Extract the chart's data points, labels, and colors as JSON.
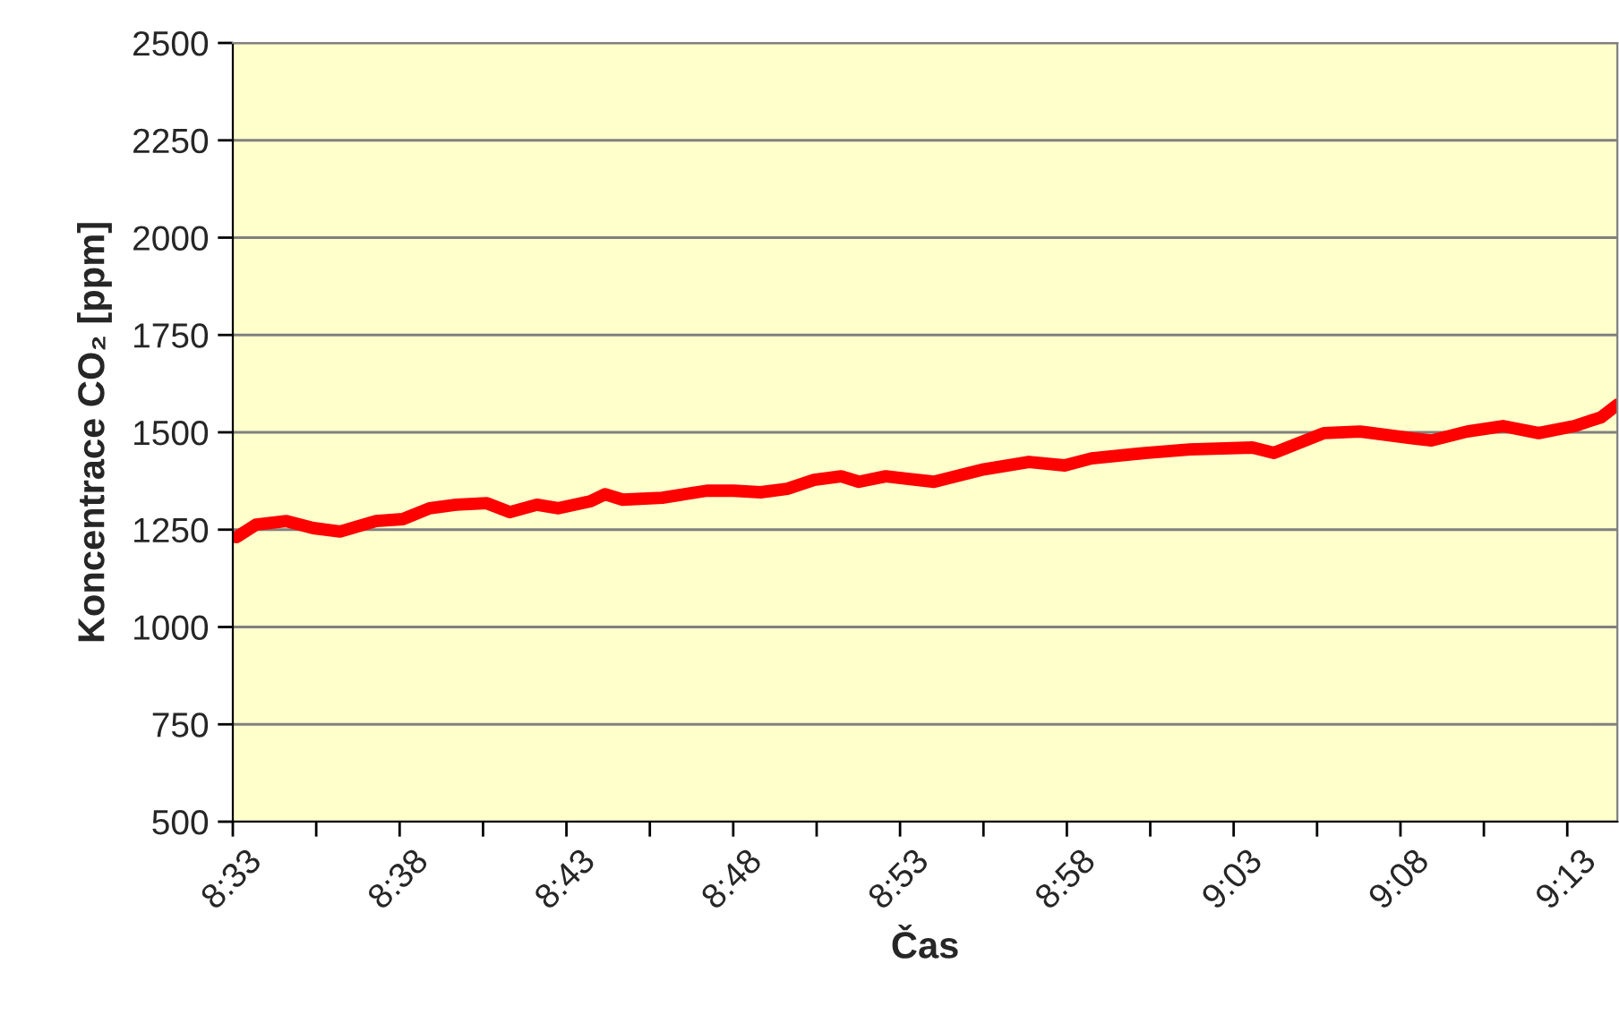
{
  "chart_data": {
    "type": "line",
    "xlabel": "Čas",
    "ylabel": "Koncentrace CO₂ [ppm]",
    "series": [
      {
        "color": "#ff0000",
        "x": [
          8.5518,
          8.5616,
          8.5768,
          8.5902,
          8.6036,
          8.6215,
          8.6349,
          8.6483,
          8.6617,
          8.6769,
          8.6885,
          8.7019,
          8.7127,
          8.7287,
          8.7359,
          8.7448,
          8.7645,
          8.7868,
          8.8002,
          8.8136,
          8.827,
          8.8404,
          8.8539,
          8.8628,
          8.8762,
          8.9003,
          8.9253,
          8.9477,
          8.9656,
          8.979,
          9.0058,
          9.0281,
          9.0594,
          9.0701,
          9.0951,
          9.113,
          9.1398,
          9.1488,
          9.1666,
          9.1845,
          9.2024,
          9.2202,
          9.2337,
          9.2417
        ],
        "values": [
          1231,
          1263,
          1272,
          1254,
          1245,
          1272,
          1277,
          1305,
          1314,
          1318,
          1295,
          1314,
          1305,
          1323,
          1341,
          1327,
          1332,
          1350,
          1350,
          1346,
          1355,
          1378,
          1387,
          1373,
          1387,
          1373,
          1405,
          1424,
          1415,
          1433,
          1447,
          1456,
          1461,
          1447,
          1498,
          1502,
          1484,
          1479,
          1502,
          1516,
          1498,
          1516,
          1539,
          1571
        ]
      }
    ],
    "xlim": [
      8.55,
      9.2417
    ],
    "xticks": [
      {
        "value": 8.55,
        "label": "8:33"
      },
      {
        "value": 8.591667,
        "label": null
      },
      {
        "value": 8.633333,
        "label": "8:38"
      },
      {
        "value": 8.675,
        "label": null
      },
      {
        "value": 8.716667,
        "label": "8:43"
      },
      {
        "value": 8.758333,
        "label": null
      },
      {
        "value": 8.8,
        "label": "8:48"
      },
      {
        "value": 8.841667,
        "label": null
      },
      {
        "value": 8.883333,
        "label": "8:53"
      },
      {
        "value": 8.925,
        "label": null
      },
      {
        "value": 8.966667,
        "label": "8:58"
      },
      {
        "value": 9.008333,
        "label": null
      },
      {
        "value": 9.05,
        "label": "9:03"
      },
      {
        "value": 9.091667,
        "label": null
      },
      {
        "value": 9.133333,
        "label": "9:08"
      },
      {
        "value": 9.175,
        "label": null
      },
      {
        "value": 9.216667,
        "label": "9:13"
      }
    ],
    "ylim": [
      500,
      2500
    ],
    "yticks": [
      500,
      750,
      1000,
      1250,
      1500,
      1750,
      2000,
      2250,
      2500
    ],
    "grid": "y",
    "legend": false,
    "marker": "none",
    "line_style": "solid"
  }
}
